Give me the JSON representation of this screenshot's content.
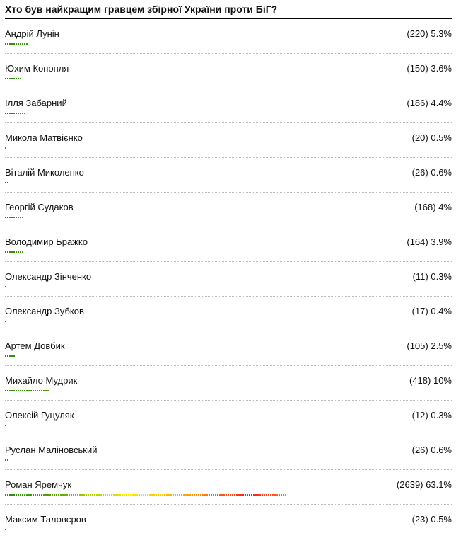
{
  "title": "Хто був найкращим гравцем збірної України проти БіГ?",
  "options": [
    {
      "name": "Андрій Лунін",
      "votes": "(220)",
      "percent": 5.3
    },
    {
      "name": "Юхим Конопля",
      "votes": "(150)",
      "percent": 3.6
    },
    {
      "name": "Ілля Забарний",
      "votes": "(186)",
      "percent": 4.4
    },
    {
      "name": "Микола Матвієнко",
      "votes": "(20)",
      "percent": 0.5
    },
    {
      "name": "Віталій Миколенко",
      "votes": "(26)",
      "percent": 0.6
    },
    {
      "name": "Георгій Судаков",
      "votes": "(168)",
      "percent": 4
    },
    {
      "name": "Володимир Бражко",
      "votes": "(164)",
      "percent": 3.9
    },
    {
      "name": "Олександр Зінченко",
      "votes": "(11)",
      "percent": 0.3
    },
    {
      "name": "Олександр Зубков",
      "votes": "(17)",
      "percent": 0.4
    },
    {
      "name": "Артем Довбик",
      "votes": "(105)",
      "percent": 2.5
    },
    {
      "name": "Михайло Мудрик",
      "votes": "(418)",
      "percent": 10
    },
    {
      "name": "Олексій Гуцуляк",
      "votes": "(12)",
      "percent": 0.3
    },
    {
      "name": "Руслан Маліновський",
      "votes": "(26)",
      "percent": 0.6
    },
    {
      "name": "Роман Яремчук",
      "votes": "(2639)",
      "percent": 63.1
    },
    {
      "name": "Максим Таловєров",
      "votes": "(23)",
      "percent": 0.5
    }
  ]
}
